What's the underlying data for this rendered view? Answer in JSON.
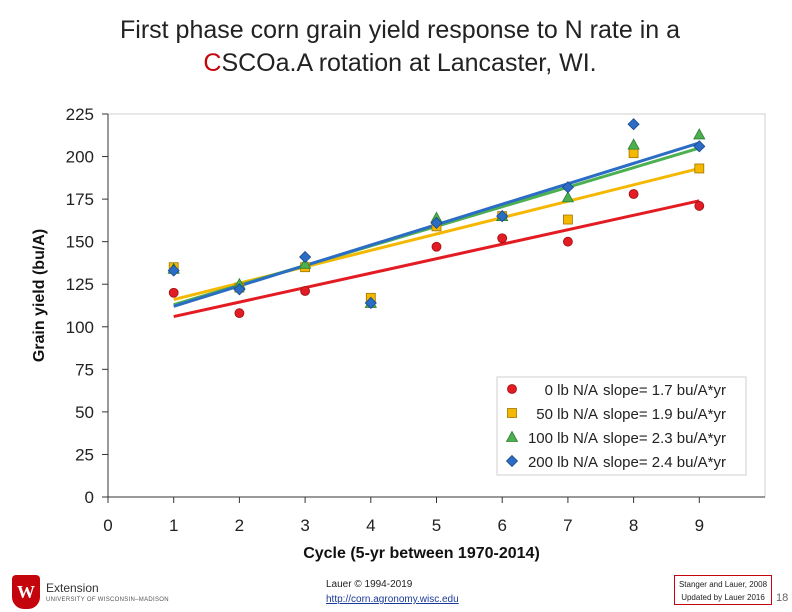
{
  "slide": {
    "title_accent": "C",
    "title_line1": "First phase corn grain yield response to N rate in a",
    "title_line2_rest": "SCOa.A rotation at Lancaster, WI.",
    "logo_word": "Extension",
    "logo_sub": "UNIVERSITY OF WISCONSIN–MADISON",
    "credit_line1": "Lauer © 1994-2019",
    "credit_link": "http://corn.agronomy.wisc.edu",
    "cite_line1": "Stanger and Lauer, 2008",
    "cite_line2": "Updated by Lauer 2016",
    "slide_number": "18",
    "colors": {
      "accent": "#c5050c",
      "link": "#1a3a9a"
    }
  },
  "chart_data": {
    "type": "scatter",
    "xlabel": "Cycle (5-yr between 1970-2014)",
    "ylabel": "Grain yield (bu/A)",
    "xlim": [
      0,
      10
    ],
    "ylim": [
      0,
      225
    ],
    "xticks": [
      0,
      1,
      2,
      3,
      4,
      5,
      6,
      7,
      8,
      9
    ],
    "yticks": [
      0,
      25,
      50,
      75,
      100,
      125,
      150,
      175,
      200,
      225
    ],
    "grid": false,
    "legend_position": "bottom-right",
    "x": [
      1,
      2,
      3,
      4,
      5,
      6,
      7,
      8,
      9
    ],
    "series": [
      {
        "name": "0 lb N/A",
        "slope_label": "slope= 1.7 bu/A*yr",
        "marker": "circle",
        "color": "#e31b23",
        "values": [
          120,
          108,
          121,
          115,
          147,
          152,
          150,
          178,
          171
        ],
        "trend": [
          [
            1,
            106
          ],
          [
            9,
            174
          ]
        ]
      },
      {
        "name": "50 lb N/A",
        "slope_label": "slope= 1.9 bu/A*yr",
        "marker": "square",
        "color": "#f5b800",
        "values": [
          135,
          123,
          135,
          117,
          159,
          165,
          163,
          202,
          193
        ],
        "trend": [
          [
            1,
            116
          ],
          [
            9,
            193
          ]
        ]
      },
      {
        "name": "100 lb N/A",
        "slope_label": "slope= 2.3 bu/A*yr",
        "marker": "triangle",
        "color": "#4caf50",
        "values": [
          134,
          125,
          137,
          114,
          164,
          165,
          176,
          207,
          213
        ],
        "trend": [
          [
            1,
            113
          ],
          [
            9,
            205
          ]
        ]
      },
      {
        "name": "200 lb N/A",
        "slope_label": "slope= 2.4 bu/A*yr",
        "marker": "diamond",
        "color": "#2b6cc4",
        "values": [
          133,
          122,
          141,
          114,
          161,
          165,
          182,
          219,
          206
        ],
        "trend": [
          [
            1,
            112
          ],
          [
            9,
            208
          ]
        ]
      }
    ]
  }
}
